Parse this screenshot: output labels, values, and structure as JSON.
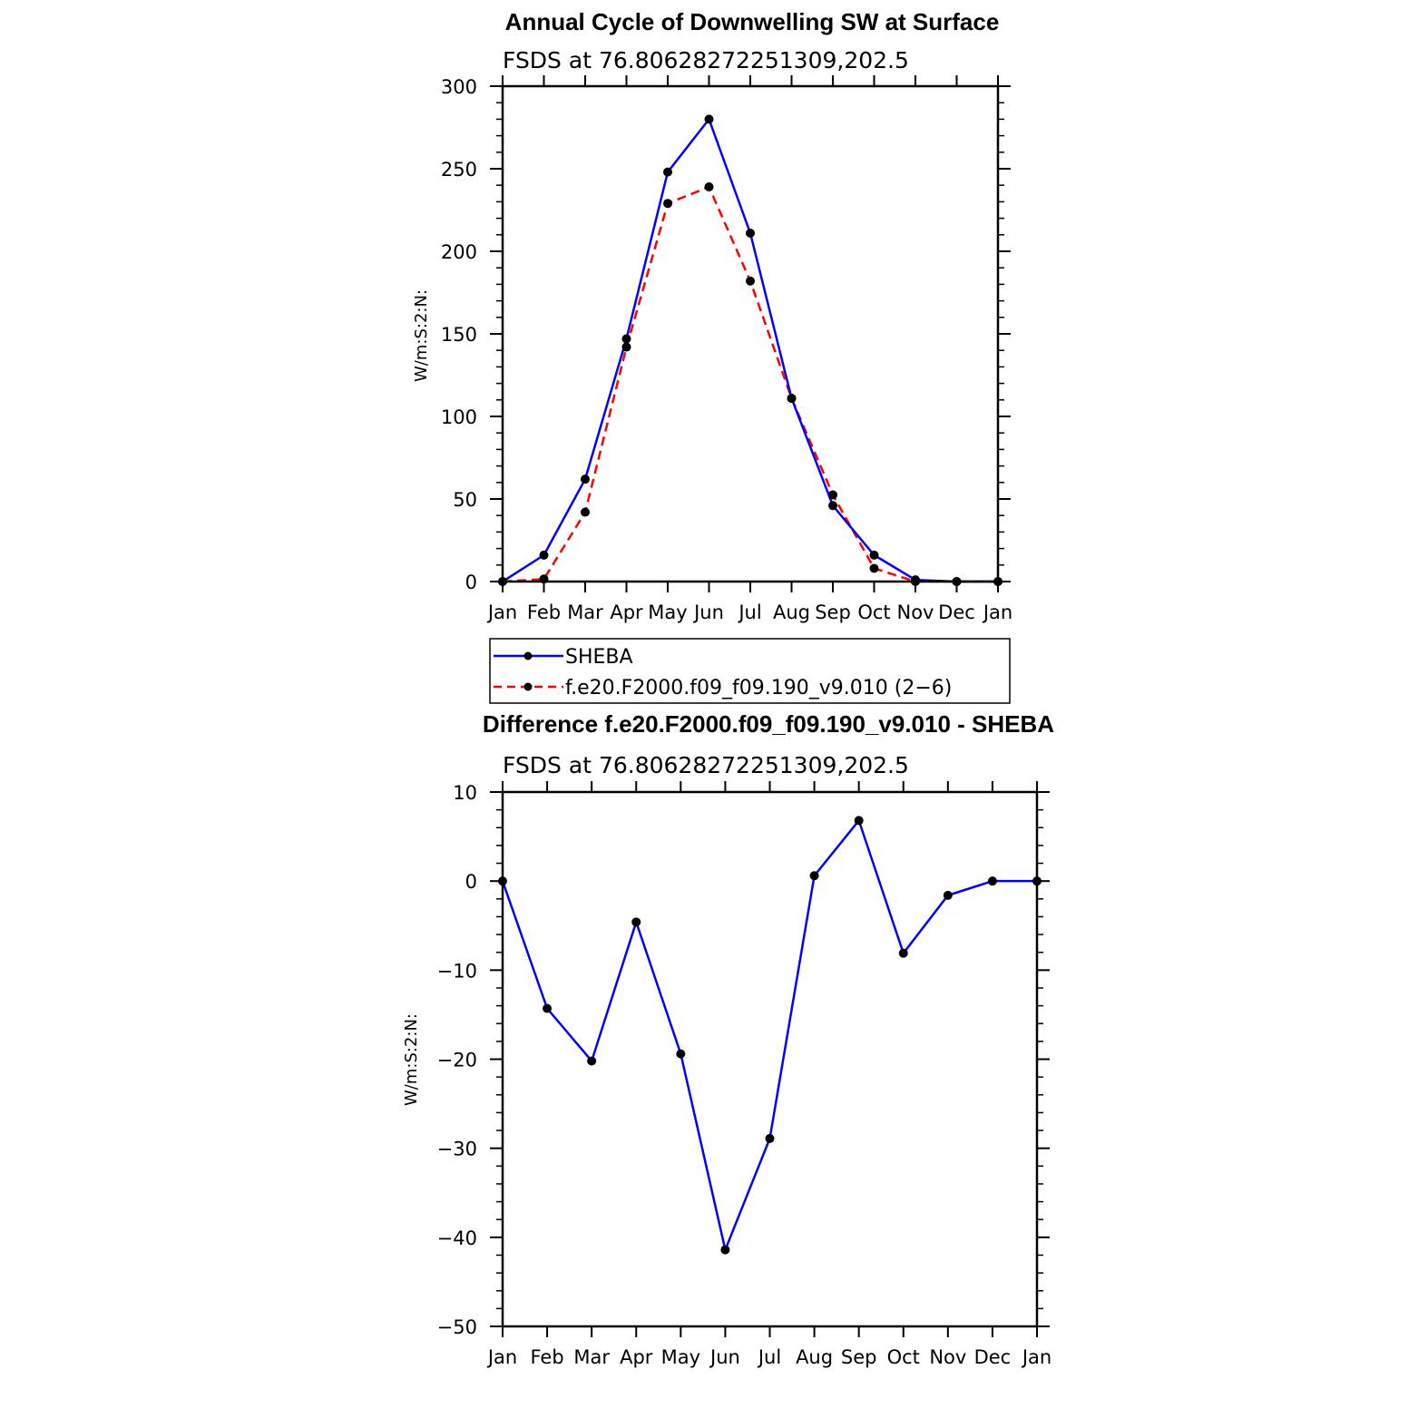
{
  "chart_data": [
    {
      "type": "line",
      "title": "Annual Cycle of Downwelling SW at Surface",
      "subtitle": "FSDS at 76.80628272251309,202.5",
      "ylabel": "W/m:S:2:N:",
      "xlabel": "",
      "categories": [
        "Jan",
        "Feb",
        "Mar",
        "Apr",
        "May",
        "Jun",
        "Jul",
        "Aug",
        "Sep",
        "Oct",
        "Nov",
        "Dec",
        "Jan"
      ],
      "ylim": [
        0,
        300
      ],
      "yticks": [
        "0",
        "50",
        "100",
        "150",
        "200",
        "250",
        "300"
      ],
      "series": [
        {
          "name": "SHEBA",
          "color": "#0000ff",
          "dash": "solid",
          "values": [
            0,
            16,
            62,
            147,
            248,
            280,
            211,
            111,
            46,
            16,
            1,
            0,
            0
          ]
        },
        {
          "name": "f.e20.F2000.f09_f09.190_v9.010 (2−6)",
          "color": "#ff0000",
          "dash": "dashed",
          "values": [
            0,
            1.5,
            42,
            142,
            229,
            239,
            182,
            111,
            52.5,
            8,
            0,
            0,
            0
          ]
        }
      ],
      "legend": "below"
    },
    {
      "type": "line",
      "title": "Difference f.e20.F2000.f09_f09.190_v9.010 - SHEBA",
      "subtitle": "FSDS at 76.80628272251309,202.5",
      "ylabel": "W/m:S:2:N:",
      "xlabel": "",
      "categories": [
        "Jan",
        "Feb",
        "Mar",
        "Apr",
        "May",
        "Jun",
        "Jul",
        "Aug",
        "Sep",
        "Oct",
        "Nov",
        "Dec",
        "Jan"
      ],
      "ylim": [
        -50,
        10
      ],
      "yticks": [
        "−50",
        "−40",
        "−30",
        "−20",
        "−10",
        "0",
        "10"
      ],
      "series": [
        {
          "color": "#0000ff",
          "dash": "solid",
          "values": [
            0,
            -14.3,
            -20.2,
            -4.6,
            -19.4,
            -41.4,
            -28.9,
            0.6,
            6.8,
            -8.1,
            -1.6,
            0,
            0
          ]
        }
      ]
    }
  ]
}
